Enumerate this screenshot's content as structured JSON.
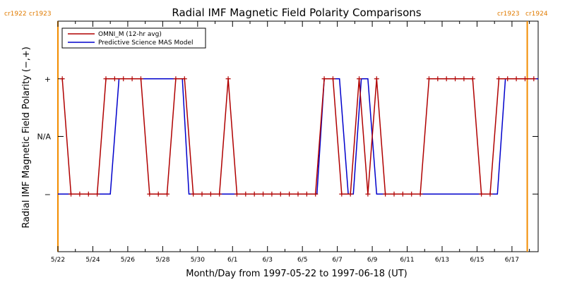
{
  "chart_data": {
    "type": "line",
    "title": "Radial IMF Magnetic Field Polarity Comparisons",
    "xlabel": "Month/Day from 1997-05-22 to 1997-06-18 (UT)",
    "ylabel": "Radial IMF Magnetic Field Polarity (−,+)",
    "x_start": "1997-05-22",
    "x_end": "1997-06-18",
    "x_tick_labels": [
      "5/22",
      "5/24",
      "5/26",
      "5/28",
      "5/30",
      "6/1",
      "6/3",
      "6/5",
      "6/7",
      "6/9",
      "6/11",
      "6/13",
      "6/15",
      "6/17"
    ],
    "y_tick_labels": [
      "−",
      "N/A",
      "+"
    ],
    "ylim": [
      -2,
      2
    ],
    "carrington_markers": [
      {
        "date": "1997-05-22",
        "left_label": "cr1922",
        "right_label": "cr1923"
      },
      {
        "date": "1997-06-17T21:00",
        "left_label": "cr1923",
        "right_label": "cr1924"
      }
    ],
    "series": [
      {
        "name": "OMNI_M (12-hr avg)",
        "color": "#b00000",
        "marker": "+",
        "points": [
          [
            "1997-05-22T06:00",
            1
          ],
          [
            "1997-05-22T18:00",
            -1
          ],
          [
            "1997-05-23T06:00",
            -1
          ],
          [
            "1997-05-23T18:00",
            -1
          ],
          [
            "1997-05-24T06:00",
            -1
          ],
          [
            "1997-05-24T18:00",
            1
          ],
          [
            "1997-05-25T06:00",
            1
          ],
          [
            "1997-05-25T18:00",
            1
          ],
          [
            "1997-05-26T06:00",
            1
          ],
          [
            "1997-05-26T18:00",
            1
          ],
          [
            "1997-05-27T06:00",
            -1
          ],
          [
            "1997-05-27T18:00",
            -1
          ],
          [
            "1997-05-28T06:00",
            -1
          ],
          [
            "1997-05-28T18:00",
            1
          ],
          [
            "1997-05-29T06:00",
            1
          ],
          [
            "1997-05-29T18:00",
            -1
          ],
          [
            "1997-05-30T06:00",
            -1
          ],
          [
            "1997-05-30T18:00",
            -1
          ],
          [
            "1997-05-31T06:00",
            -1
          ],
          [
            "1997-05-31T18:00",
            1
          ],
          [
            "1997-06-01T06:00",
            -1
          ],
          [
            "1997-06-01T18:00",
            -1
          ],
          [
            "1997-06-02T06:00",
            -1
          ],
          [
            "1997-06-02T18:00",
            -1
          ],
          [
            "1997-06-03T06:00",
            -1
          ],
          [
            "1997-06-03T18:00",
            -1
          ],
          [
            "1997-06-04T06:00",
            -1
          ],
          [
            "1997-06-04T18:00",
            -1
          ],
          [
            "1997-06-05T06:00",
            -1
          ],
          [
            "1997-06-05T18:00",
            -1
          ],
          [
            "1997-06-06T06:00",
            1
          ],
          [
            "1997-06-06T18:00",
            1
          ],
          [
            "1997-06-07T06:00",
            -1
          ],
          [
            "1997-06-07T18:00",
            -1
          ],
          [
            "1997-06-08T06:00",
            1
          ],
          [
            "1997-06-08T18:00",
            -1
          ],
          [
            "1997-06-09T06:00",
            1
          ],
          [
            "1997-06-09T18:00",
            -1
          ],
          [
            "1997-06-10T06:00",
            -1
          ],
          [
            "1997-06-10T18:00",
            -1
          ],
          [
            "1997-06-11T06:00",
            -1
          ],
          [
            "1997-06-11T18:00",
            -1
          ],
          [
            "1997-06-12T06:00",
            1
          ],
          [
            "1997-06-12T18:00",
            1
          ],
          [
            "1997-06-13T06:00",
            1
          ],
          [
            "1997-06-13T18:00",
            1
          ],
          [
            "1997-06-14T06:00",
            1
          ],
          [
            "1997-06-14T18:00",
            1
          ],
          [
            "1997-06-15T06:00",
            -1
          ],
          [
            "1997-06-15T18:00",
            -1
          ],
          [
            "1997-06-16T06:00",
            1
          ],
          [
            "1997-06-16T18:00",
            1
          ],
          [
            "1997-06-17T06:00",
            1
          ],
          [
            "1997-06-17T18:00",
            1
          ],
          [
            "1997-06-18T06:00",
            1
          ]
        ]
      },
      {
        "name": "Predictive Science MAS Model",
        "color": "#0000cc",
        "marker": "none",
        "points": [
          [
            "1997-05-22T00:00",
            -1
          ],
          [
            "1997-05-25T00:00",
            -1
          ],
          [
            "1997-05-25T12:00",
            1
          ],
          [
            "1997-05-29T03:00",
            1
          ],
          [
            "1997-05-29T12:00",
            -1
          ],
          [
            "1997-06-05T20:00",
            -1
          ],
          [
            "1997-06-06T06:00",
            1
          ],
          [
            "1997-06-07T03:00",
            1
          ],
          [
            "1997-06-07T15:00",
            -1
          ],
          [
            "1997-06-07T22:00",
            -1
          ],
          [
            "1997-06-08T09:00",
            1
          ],
          [
            "1997-06-08T18:00",
            1
          ],
          [
            "1997-06-09T06:00",
            -1
          ],
          [
            "1997-06-16T04:00",
            -1
          ],
          [
            "1997-06-16T15:00",
            1
          ],
          [
            "1997-06-18T12:00",
            1
          ]
        ]
      }
    ]
  }
}
